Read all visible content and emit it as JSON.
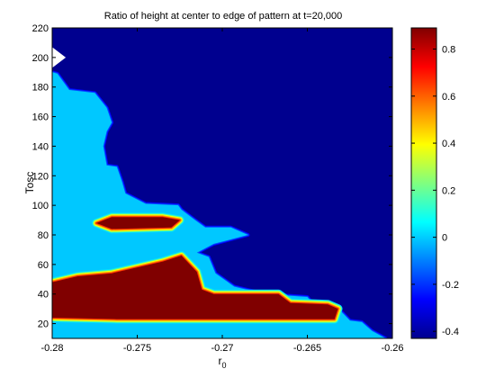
{
  "chart_data": {
    "type": "heatmap",
    "subtype": "filled-contour",
    "title": "Ratio of height at center  to edge of pattern at t=20,000",
    "xlabel": "r",
    "xlabel_subscript": "0",
    "ylabel": "Tosc",
    "xlim": [
      -0.28,
      -0.26
    ],
    "ylim": [
      10,
      220
    ],
    "x_ticks": [
      "-0.28",
      "-0.275",
      "-0.27",
      "-0.265",
      "-0.26"
    ],
    "y_ticks": [
      "20",
      "40",
      "60",
      "80",
      "100",
      "120",
      "140",
      "160",
      "180",
      "200",
      "220"
    ],
    "grid": false,
    "colormap": "jet",
    "colorbar": {
      "position": "right",
      "range": [
        -0.43,
        0.89
      ],
      "ticks": [
        "-0.4",
        "-0.2",
        "0",
        "0.2",
        "0.4",
        "0.6",
        "0.8"
      ]
    },
    "regions": [
      {
        "level": -0.43,
        "color": "#00008f",
        "polygon": [
          [
            -0.28,
            10
          ],
          [
            -0.26,
            10
          ],
          [
            -0.26,
            220
          ],
          [
            -0.28,
            220
          ]
        ]
      },
      {
        "level": -0.05,
        "color": "#00c8ff",
        "polygon": [
          [
            -0.28,
            10
          ],
          [
            -0.2604,
            10
          ],
          [
            -0.2612,
            15
          ],
          [
            -0.2618,
            21
          ],
          [
            -0.2625,
            22
          ],
          [
            -0.263,
            28
          ],
          [
            -0.2645,
            31
          ],
          [
            -0.265,
            38
          ],
          [
            -0.2675,
            40
          ],
          [
            -0.2693,
            45
          ],
          [
            -0.2704,
            54
          ],
          [
            -0.2708,
            65
          ],
          [
            -0.2715,
            68
          ],
          [
            -0.2705,
            74
          ],
          [
            -0.2685,
            80
          ],
          [
            -0.2695,
            85
          ],
          [
            -0.271,
            85
          ],
          [
            -0.2716,
            90
          ],
          [
            -0.2724,
            97
          ],
          [
            -0.2726,
            100
          ],
          [
            -0.2745,
            101
          ],
          [
            -0.2757,
            108
          ],
          [
            -0.2759,
            116
          ],
          [
            -0.2762,
            126
          ],
          [
            -0.2768,
            127
          ],
          [
            -0.277,
            140
          ],
          [
            -0.2768,
            150
          ],
          [
            -0.2765,
            156
          ],
          [
            -0.2768,
            166
          ],
          [
            -0.2775,
            176
          ],
          [
            -0.279,
            178
          ],
          [
            -0.2797,
            189
          ],
          [
            -0.28,
            190
          ]
        ]
      },
      {
        "level": 0.89,
        "color": "#800000",
        "polygon": [
          [
            -0.28,
            24
          ],
          [
            -0.2762,
            23
          ],
          [
            -0.2634,
            23
          ],
          [
            -0.2632,
            30
          ],
          [
            -0.2638,
            33
          ],
          [
            -0.266,
            34
          ],
          [
            -0.2667,
            40
          ],
          [
            -0.2705,
            40
          ],
          [
            -0.2712,
            43
          ],
          [
            -0.2715,
            55
          ],
          [
            -0.2724,
            66
          ],
          [
            -0.2735,
            62
          ],
          [
            -0.2765,
            54
          ],
          [
            -0.2785,
            52
          ],
          [
            -0.28,
            48
          ]
        ]
      },
      {
        "level": 0.89,
        "color": "#800000",
        "polygon": [
          [
            -0.2774,
            88
          ],
          [
            -0.2765,
            92
          ],
          [
            -0.2735,
            92
          ],
          [
            -0.2725,
            90
          ],
          [
            -0.273,
            85
          ],
          [
            -0.2765,
            84
          ]
        ]
      }
    ],
    "notches": [
      {
        "level": -0.43,
        "color": "#00008f",
        "polygon": [
          [
            -0.28,
            190
          ],
          [
            -0.2794,
            200
          ],
          [
            -0.28,
            208
          ]
        ]
      }
    ],
    "missing_regions": [
      {
        "color": "#ffffff",
        "polygon": [
          [
            -0.28,
            193
          ],
          [
            -0.2792,
            200
          ],
          [
            -0.28,
            207
          ]
        ]
      }
    ]
  }
}
